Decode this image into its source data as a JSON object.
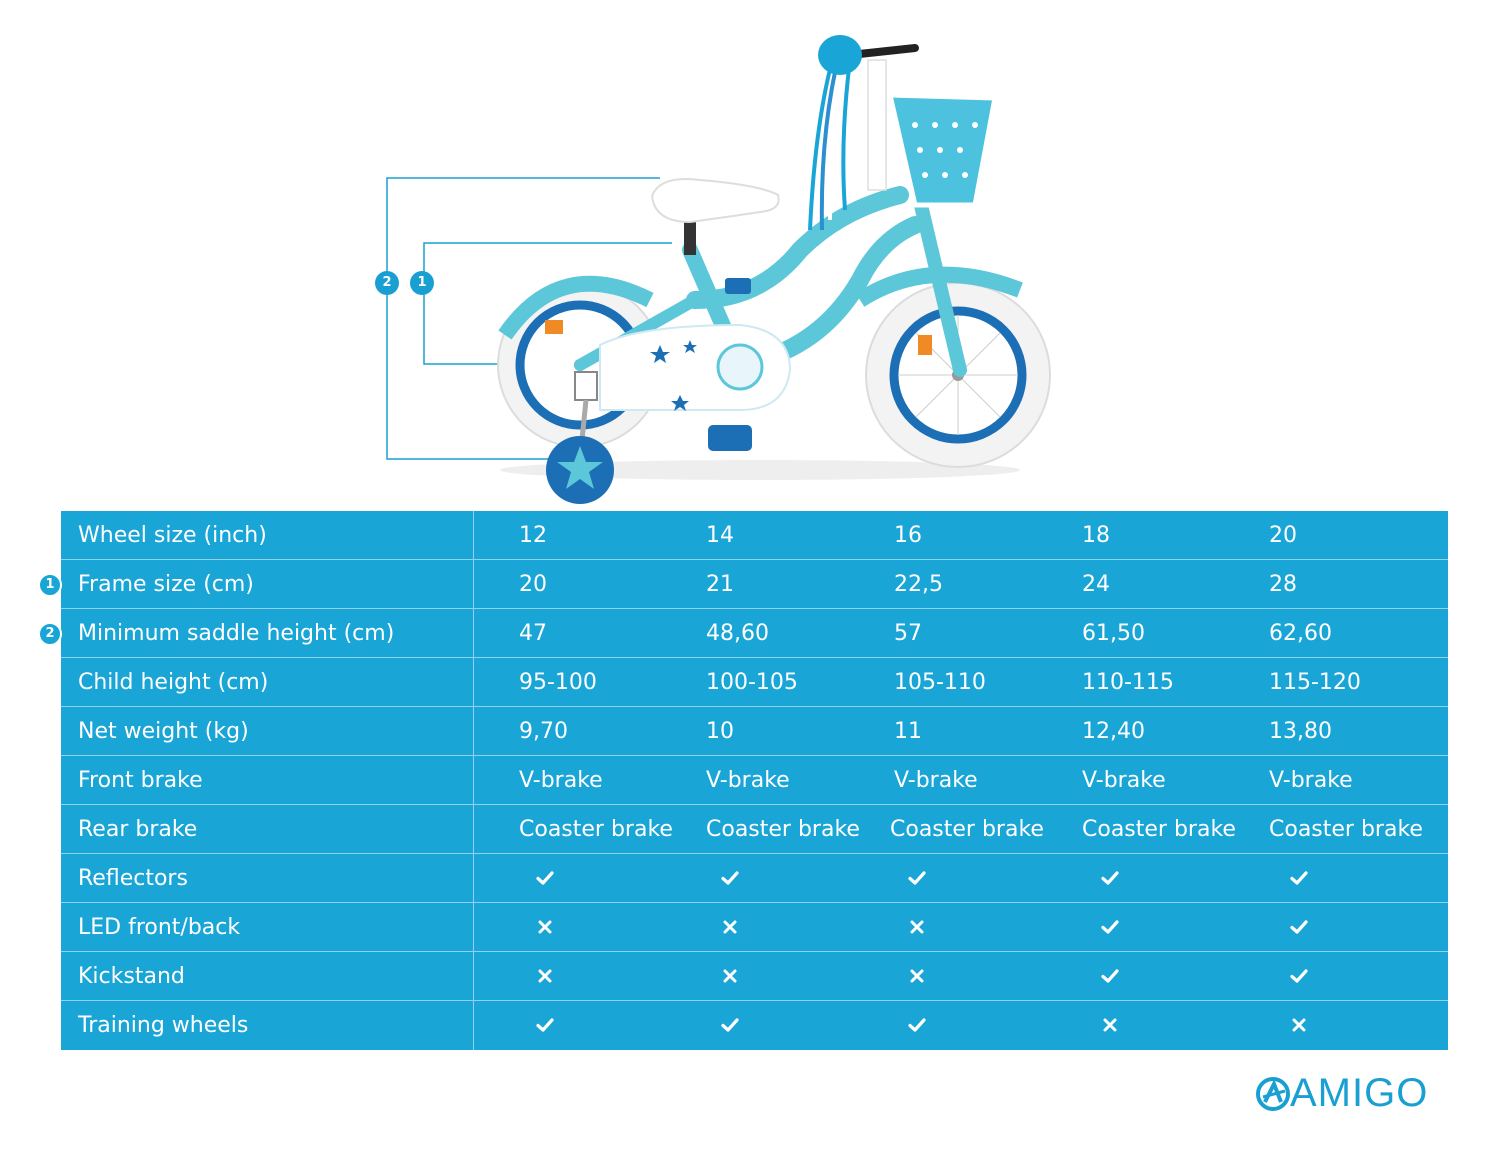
{
  "callouts": {
    "badge_1": "1",
    "badge_2": "2"
  },
  "spec_table": {
    "rows": [
      {
        "label": "Wheel size (inch)",
        "badge": "",
        "values": [
          "12",
          "14",
          "16",
          "18",
          "20"
        ]
      },
      {
        "label": "Frame size (cm)",
        "badge": "1",
        "values": [
          "20",
          "21",
          "22,5",
          "24",
          "28"
        ]
      },
      {
        "label": "Minimum saddle height (cm)",
        "badge": "2",
        "values": [
          "47",
          "48,60",
          "57",
          "61,50",
          "62,60"
        ]
      },
      {
        "label": "Child height (cm)",
        "badge": "",
        "values": [
          "95-100",
          "100-105",
          "105-110",
          "110-115",
          "115-120"
        ]
      },
      {
        "label": "Net weight (kg)",
        "badge": "",
        "values": [
          "9,70",
          "10",
          "11",
          "12,40",
          "13,80"
        ]
      },
      {
        "label": "Front brake",
        "badge": "",
        "values": [
          "V-brake",
          "V-brake",
          "V-brake",
          "V-brake",
          "V-brake"
        ]
      },
      {
        "label": "Rear brake",
        "badge": "",
        "values": [
          "Coaster brake",
          "Coaster brake",
          "Coaster brake",
          "Coaster brake",
          "Coaster brake"
        ]
      },
      {
        "label": "Reflectors",
        "badge": "",
        "marks": [
          "yes",
          "yes",
          "yes",
          "yes",
          "yes"
        ]
      },
      {
        "label": "LED front/back",
        "badge": "",
        "marks": [
          "no",
          "no",
          "no",
          "yes",
          "yes"
        ]
      },
      {
        "label": "Kickstand",
        "badge": "",
        "marks": [
          "no",
          "no",
          "no",
          "yes",
          "yes"
        ]
      },
      {
        "label": "Training wheels",
        "badge": "",
        "marks": [
          "yes",
          "yes",
          "yes",
          "no",
          "no"
        ]
      }
    ]
  },
  "brand": {
    "name": "AMIGO",
    "icon": "amigo-logo-icon"
  },
  "colors": {
    "table_bg": "#1aa5d7",
    "accent": "#1a9fd3",
    "divider": "#8fd3ee",
    "bike_frame": "#5cc7d8",
    "bike_blue": "#1c6fb5"
  }
}
